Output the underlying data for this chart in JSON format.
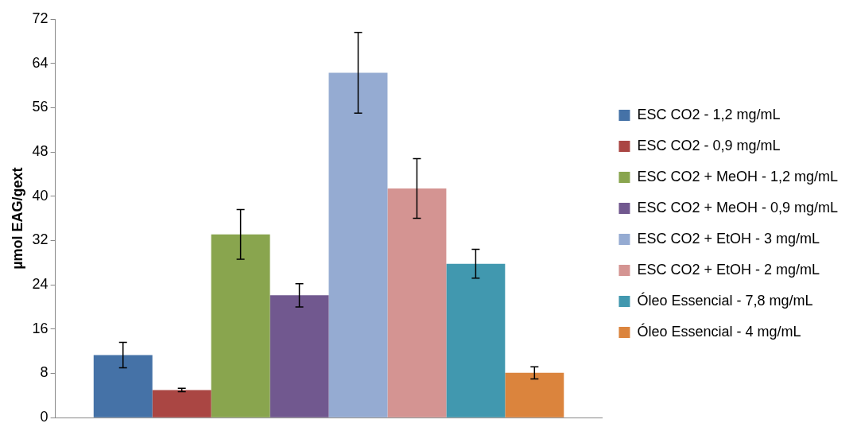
{
  "chart_data": {
    "type": "bar",
    "ylabel": "µmol EAG/gext",
    "categories": [
      null
    ],
    "series": [
      {
        "name": "ESC CO2 - 1,2 mg/mL",
        "color": "#4572a7",
        "values": [
          11.3
        ],
        "errors": [
          2.3
        ]
      },
      {
        "name": "ESC CO2 - 0,9 mg/mL",
        "color": "#aa4643",
        "values": [
          5.0
        ],
        "errors": [
          0.3
        ]
      },
      {
        "name": "ESC CO2 + MeOH - 1,2 mg/mL",
        "color": "#89a54e",
        "values": [
          33.1
        ],
        "errors": [
          4.5
        ]
      },
      {
        "name": "ESC CO2 + MeOH - 0,9 mg/mL",
        "color": "#71588f",
        "values": [
          22.1
        ],
        "errors": [
          2.1
        ]
      },
      {
        "name": "ESC CO2 + EtOH - 3 mg/mL",
        "color": "#95abd2",
        "values": [
          62.3
        ],
        "errors": [
          7.3
        ]
      },
      {
        "name": "ESC CO2 + EtOH - 2 mg/mL",
        "color": "#d49492",
        "values": [
          41.4
        ],
        "errors": [
          5.4
        ]
      },
      {
        "name": "Óleo Essencial - 7,8 mg/mL",
        "color": "#4198af",
        "values": [
          27.8
        ],
        "errors": [
          2.6
        ]
      },
      {
        "name": "Óleo Essencial - 4 mg/mL",
        "color": "#db843d",
        "values": [
          8.1
        ],
        "errors": [
          1.1
        ]
      }
    ],
    "ylim": [
      0,
      72
    ],
    "yticks": [
      0,
      8,
      16,
      24,
      32,
      40,
      48,
      56,
      64,
      72
    ],
    "grid": false,
    "legend": "right"
  }
}
